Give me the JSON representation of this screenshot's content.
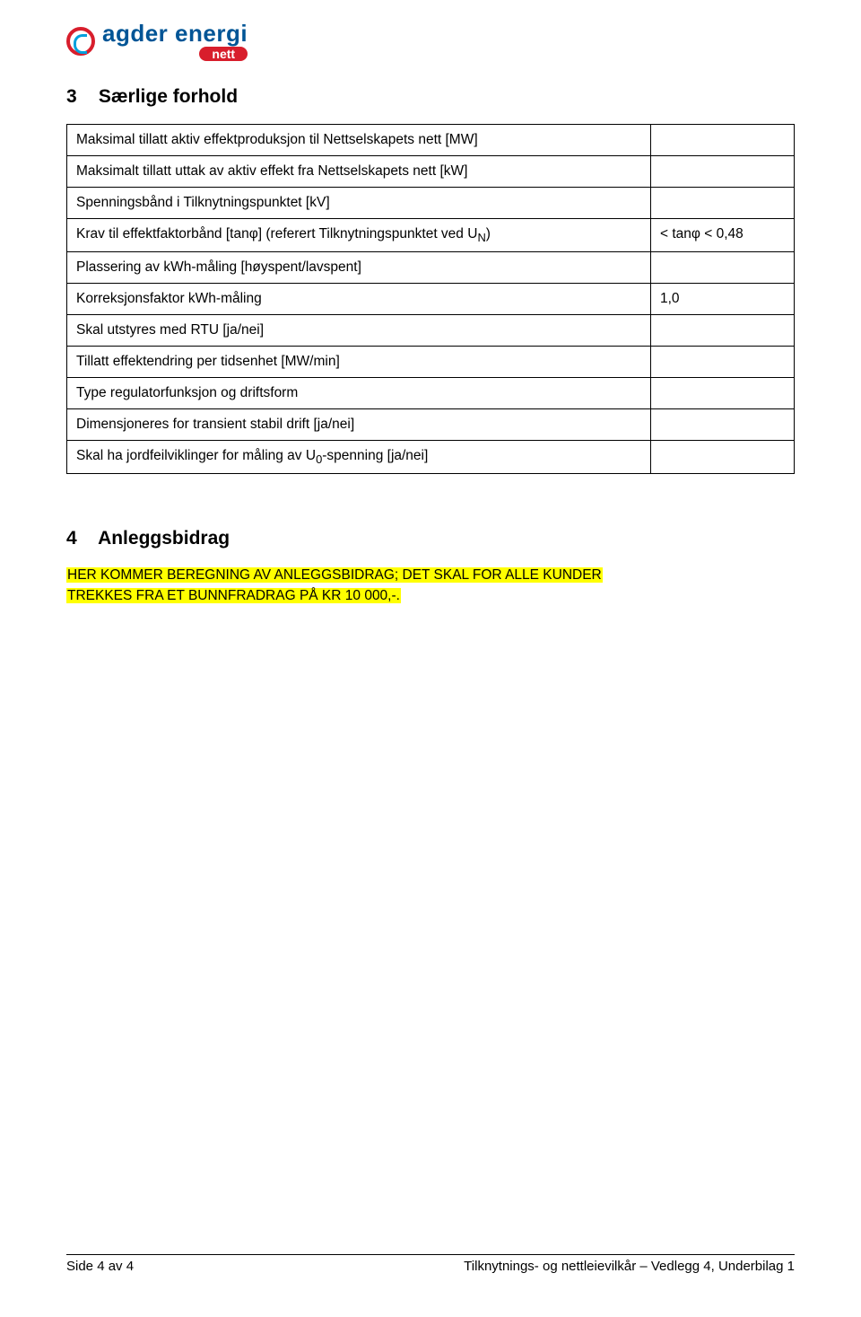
{
  "logo": {
    "brand_line1": "agder energi",
    "brand_sub": "nett"
  },
  "section3": {
    "number": "3",
    "title": "Særlige forhold",
    "rows": [
      {
        "label": "Maksimal tillatt aktiv effektproduksjon til Nettselskapets nett [MW]",
        "value": ""
      },
      {
        "label": "Maksimalt tillatt uttak av aktiv effekt fra Nettselskapets nett [kW]",
        "value": ""
      },
      {
        "label": "Spenningsbånd i Tilknytningspunktet [kV]",
        "value": ""
      },
      {
        "label": "Krav til effektfaktorbånd [tanφ] (referert Tilknytningspunktet ved U",
        "label_sub": "N",
        "label_suffix": ")",
        "value": "< tanφ < 0,48"
      },
      {
        "label": "Plassering av kWh-måling [høyspent/lavspent]",
        "value": ""
      },
      {
        "label": "Korreksjonsfaktor kWh-måling",
        "value": "1,0"
      },
      {
        "label": "Skal utstyres med RTU [ja/nei]",
        "value": ""
      },
      {
        "label": "Tillatt effektendring per tidsenhet [MW/min]",
        "value": ""
      },
      {
        "label": "Type regulatorfunksjon og driftsform",
        "value": ""
      },
      {
        "label": "Dimensjoneres for transient stabil drift [ja/nei]",
        "value": ""
      },
      {
        "label": "Skal ha jordfeilviklinger for måling av U",
        "label_sub": "0",
        "label_suffix": "-spenning [ja/nei]",
        "value": ""
      }
    ]
  },
  "section4": {
    "number": "4",
    "title": "Anleggsbidrag",
    "highlight_line1": "HER KOMMER BEREGNING AV ANLEGGSBIDRAG; DET SKAL FOR ALLE KUNDER",
    "highlight_line2": "TREKKES FRA ET BUNNFRADRAG PÅ KR 10 000,-."
  },
  "footer": {
    "left": "Side 4 av 4",
    "right": "Tilknytnings- og nettleievilkår – Vedlegg 4, Underbilag 1"
  }
}
